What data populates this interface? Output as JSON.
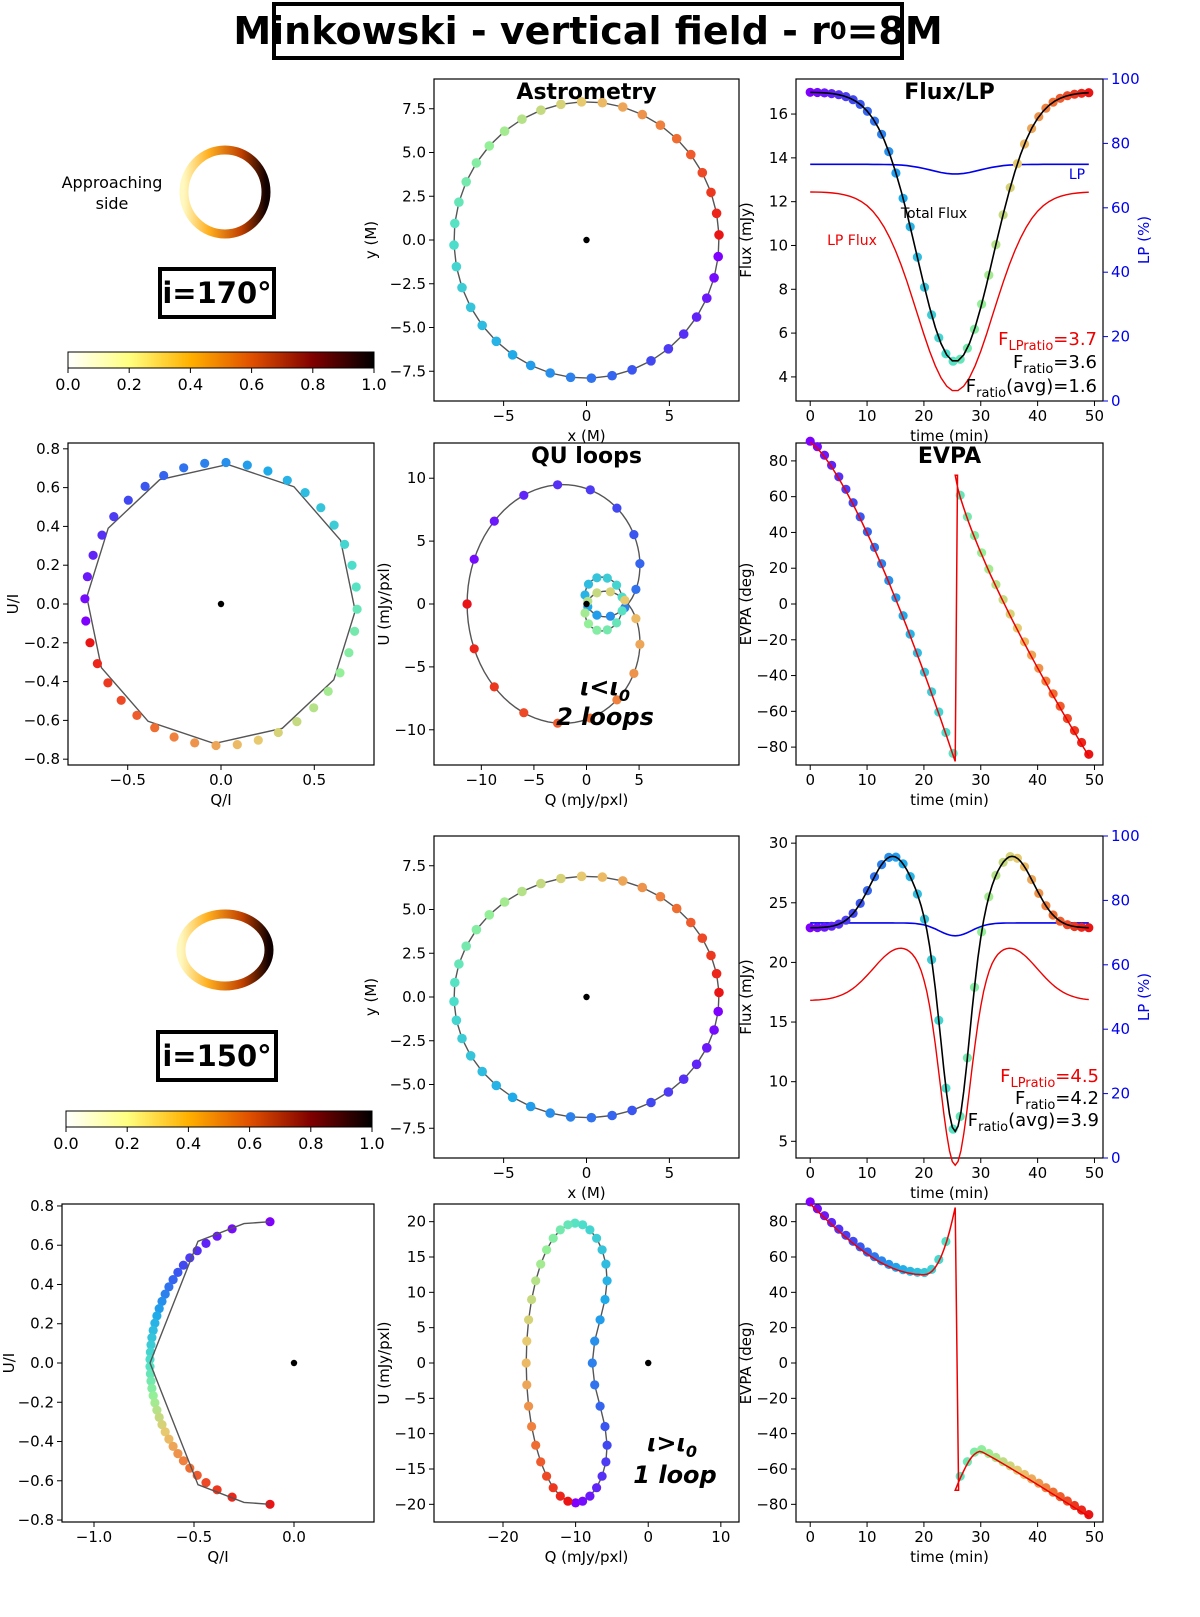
{
  "figure": {
    "title_main": "Minkowski - vertical field - r",
    "title_sub": "0",
    "title_tail": "=8M"
  },
  "colors": {
    "axis": "#000000",
    "track": "#555555",
    "lp_line": "#0000ee",
    "lp_flux": "#ee0000",
    "total_flux": "#000000",
    "annot_red": "#ee0000"
  },
  "images": [
    {
      "inclination_label": "i=170°",
      "approaching_label": [
        "Approaching",
        "side"
      ]
    },
    {
      "inclination_label": "i=150°"
    }
  ],
  "colorbar": {
    "ticks": [
      "0.0",
      "0.2",
      "0.4",
      "0.6",
      "0.8",
      "1.0"
    ],
    "range": [
      0,
      1
    ],
    "colormap": "afmhot_r"
  },
  "chart_data": [
    {
      "id": "astrometry-170",
      "type": "scatter",
      "title": "Astrometry",
      "xlabel": "x (M)",
      "ylabel": "y (M)",
      "xlim": [
        -9.2,
        9.2
      ],
      "ylim": [
        -9.2,
        9.2
      ],
      "xticks": [
        -5,
        0,
        5
      ],
      "yticks": [
        -7.5,
        -5.0,
        -2.5,
        0.0,
        2.5,
        5.0,
        7.5
      ],
      "ytick_labels": [
        "−7.5",
        "−5.0",
        "−2.5",
        "0.0",
        "2.5",
        "5.0",
        "7.5"
      ],
      "xtick_labels": [
        "−5",
        "0",
        "5"
      ],
      "orbit": {
        "radius_x": 8.0,
        "radius_y": 7.9,
        "n_points": 40
      },
      "center": [
        0,
        0
      ]
    },
    {
      "id": "flux-170",
      "type": "line",
      "title": "Flux/LP",
      "xlabel": "time (min)",
      "ylabel": "Flux (mJy)",
      "y2label": "LP (%)",
      "xlim": [
        -2.5,
        51.5
      ],
      "ylim": [
        2.9,
        17.6
      ],
      "y2lim": [
        0,
        100
      ],
      "xticks": [
        0,
        10,
        20,
        30,
        40,
        50
      ],
      "yticks": [
        4,
        6,
        8,
        10,
        12,
        14,
        16
      ],
      "y2ticks": [
        0,
        20,
        40,
        60,
        80,
        100
      ],
      "flux_max": 17.0,
      "flux_min": 4.7,
      "lp_flux_max": 12.45,
      "lp_flux_min": 3.35,
      "lp_max": 73.5,
      "lp_min": 70.5,
      "dip_time": 25.5,
      "labels": {
        "total_flux": "Total Flux",
        "lp_flux": "LP Flux",
        "lp": "LP"
      },
      "annotations": {
        "flp_main": "F",
        "flp_sub": "LPratio",
        "flp_val": "=3.7",
        "fr_main": "F",
        "fr_sub": "ratio",
        "fr_val": "=3.6",
        "fra_main": "F",
        "fra_sub": "ratio",
        "fra_val": "(avg)=1.6"
      }
    },
    {
      "id": "qu-norm-170",
      "type": "scatter",
      "title": "",
      "xlabel": "Q/I",
      "ylabel": "U/I",
      "xlim": [
        -0.82,
        0.82
      ],
      "ylim": [
        -0.83,
        0.83
      ],
      "xticks": [
        -0.5,
        0.0,
        0.5
      ],
      "yticks": [
        -0.8,
        -0.6,
        -0.4,
        -0.2,
        0.0,
        0.2,
        0.4,
        0.6,
        0.8
      ],
      "xtick_labels": [
        "−0.5",
        "0.0",
        "0.5"
      ],
      "ytick_labels": [
        "−0.8",
        "−0.6",
        "−0.4",
        "−0.2",
        "0.0",
        "0.2",
        "0.4",
        "0.6",
        "0.8"
      ],
      "radius": 0.73
    },
    {
      "id": "qu-loops-170",
      "type": "scatter",
      "title": "QU loops",
      "xlabel": "Q (mJy/pxl)",
      "ylabel": "U (mJy/pxl)",
      "xlim": [
        -14.5,
        14.5
      ],
      "ylim": [
        -12.8,
        12.8
      ],
      "xticks": [
        -10,
        -5,
        0,
        5
      ],
      "yticks": [
        -10,
        -5,
        0,
        5,
        10
      ],
      "xtick_labels": [
        "−10",
        "−5",
        "0",
        "5"
      ],
      "ytick_labels": [
        "−10",
        "−5",
        "0",
        "5",
        "10"
      ],
      "outer_loop_radius": 11.3,
      "inner_loop_radius": 4.6,
      "annotation": {
        "line1": "ι<ι",
        "line1_sub": "0",
        "line2": "2 loops"
      }
    },
    {
      "id": "evpa-170",
      "type": "line",
      "title": "EVPA",
      "xlabel": "time (min)",
      "ylabel": "EVPA (deg)",
      "xlim": [
        -2.5,
        51.5
      ],
      "ylim": [
        -90,
        90
      ],
      "xticks": [
        0,
        10,
        20,
        30,
        40,
        50
      ],
      "yticks": [
        -80,
        -60,
        -40,
        -20,
        0,
        20,
        40,
        60,
        80
      ],
      "ytick_labels": [
        "−80",
        "−60",
        "−40",
        "−20",
        "0",
        "20",
        "40",
        "60",
        "80"
      ],
      "flip_time": 25.5,
      "start": 90,
      "pre_flip": -88,
      "post_flip": 72,
      "end": -85
    },
    {
      "id": "astrometry-150",
      "type": "scatter",
      "title": "",
      "xlabel": "x (M)",
      "ylabel": "y (M)",
      "xlim": [
        -9.2,
        9.2
      ],
      "ylim": [
        -9.2,
        9.2
      ],
      "xticks": [
        -5,
        0,
        5
      ],
      "yticks": [
        -7.5,
        -5.0,
        -2.5,
        0.0,
        2.5,
        5.0,
        7.5
      ],
      "ytick_labels": [
        "−7.5",
        "−5.0",
        "−2.5",
        "0.0",
        "2.5",
        "5.0",
        "7.5"
      ],
      "xtick_labels": [
        "−5",
        "0",
        "5"
      ],
      "orbit": {
        "radius_x": 8.0,
        "radius_y": 6.9,
        "n_points": 40
      },
      "center": [
        0,
        0
      ]
    },
    {
      "id": "flux-150",
      "type": "line",
      "title": "",
      "xlabel": "time (min)",
      "ylabel": "Flux (mJy)",
      "y2label": "LP (%)",
      "xlim": [
        -2.5,
        51.5
      ],
      "ylim": [
        3.6,
        30.6
      ],
      "y2lim": [
        0,
        100
      ],
      "xticks": [
        0,
        10,
        20,
        30,
        40,
        50
      ],
      "yticks": [
        5,
        10,
        15,
        20,
        25,
        30
      ],
      "y2ticks": [
        0,
        20,
        40,
        60,
        80,
        100
      ],
      "flux_min_edge": 22.9,
      "flux_peak": 28.9,
      "flux_min": 7.0,
      "lp_flux_edge": 16.8,
      "lp_flux_peak": 21.2,
      "lp_flux_min": 4.6,
      "lp_max": 73.0,
      "lp_min": 69.0,
      "peak_times": [
        14.5,
        35.5
      ],
      "dip_time": 25.5,
      "annotations": {
        "flp_main": "F",
        "flp_sub": "LPratio",
        "flp_val": "=4.5",
        "fr_main": "F",
        "fr_sub": "ratio",
        "fr_val": "=4.2",
        "fra_main": "F",
        "fra_sub": "ratio",
        "fra_val": "(avg)=3.9"
      }
    },
    {
      "id": "qu-norm-150",
      "type": "scatter",
      "title": "",
      "xlabel": "Q/I",
      "ylabel": "U/I",
      "xlim": [
        -1.16,
        0.4
      ],
      "ylim": [
        -0.81,
        0.81
      ],
      "xticks": [
        -1.0,
        -0.5,
        0.0
      ],
      "yticks": [
        -0.8,
        -0.6,
        -0.4,
        -0.2,
        0.0,
        0.2,
        0.4,
        0.6,
        0.8
      ],
      "xtick_labels": [
        "−1.0",
        "−0.5",
        "0.0"
      ],
      "ytick_labels": [
        "−0.8",
        "−0.6",
        "−0.4",
        "−0.2",
        "0.0",
        "0.2",
        "0.4",
        "0.6",
        "0.8"
      ]
    },
    {
      "id": "qu-loops-150",
      "type": "scatter",
      "title": "",
      "xlabel": "Q (mJy/pxl)",
      "ylabel": "U (mJy/pxl)",
      "xlim": [
        -29.5,
        12.5
      ],
      "ylim": [
        -22.5,
        22.5
      ],
      "xticks": [
        -20,
        -10,
        0,
        10
      ],
      "yticks": [
        -20,
        -15,
        -10,
        -5,
        0,
        5,
        10,
        15,
        20
      ],
      "xtick_labels": [
        "−20",
        "−10",
        "0",
        "10"
      ],
      "ytick_labels": [
        "−20",
        "−15",
        "−10",
        "−5",
        "0",
        "5",
        "10",
        "15",
        "20"
      ],
      "annotation": {
        "line1": "ι>ι",
        "line1_sub": "0",
        "line2": "1 loop"
      }
    },
    {
      "id": "evpa-150",
      "type": "line",
      "title": "",
      "xlabel": "time (min)",
      "ylabel": "EVPA (deg)",
      "xlim": [
        -2.5,
        51.5
      ],
      "ylim": [
        -90,
        90
      ],
      "xticks": [
        0,
        10,
        20,
        30,
        40,
        50
      ],
      "yticks": [
        -80,
        -60,
        -40,
        -20,
        0,
        20,
        40,
        60,
        80
      ],
      "ytick_labels": [
        "−80",
        "−60",
        "−40",
        "−20",
        "0",
        "20",
        "40",
        "60",
        "80"
      ],
      "flip_time": 25.5,
      "start": 90,
      "min_before": 50,
      "pre_flip": 88,
      "post_flip": -72,
      "bump": -50,
      "end": -87
    }
  ]
}
